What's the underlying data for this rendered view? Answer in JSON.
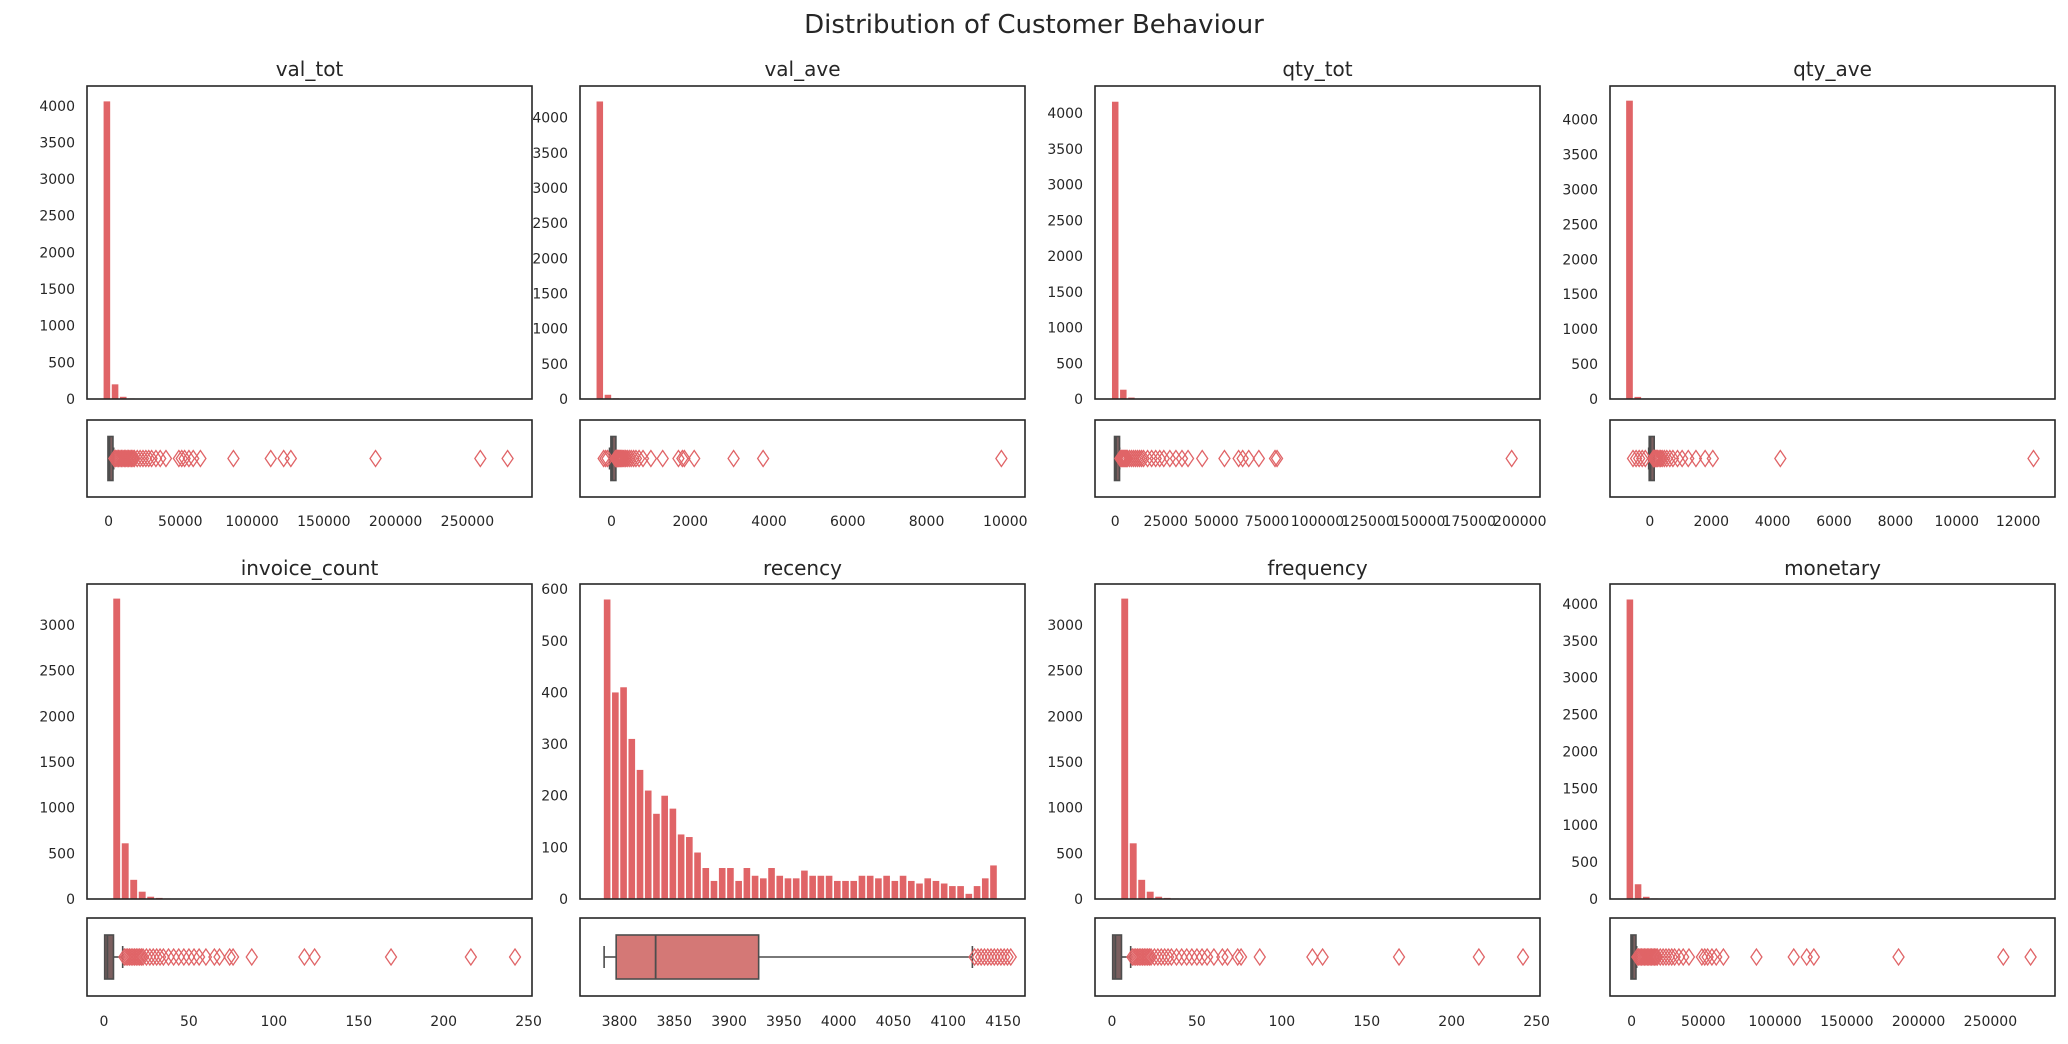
{
  "suptitle": "Distribution of Customer Behaviour",
  "colors": {
    "bar": "#e06467",
    "box_fill": "#d47876",
    "median_box_fill": "#7b5f5f",
    "flier": "#e06467",
    "line": "#4d4d4d"
  },
  "chart_data": [
    {
      "type": "histogram+boxplot",
      "title": "val_tot",
      "hist": {
        "bin_start": -4000,
        "bin_width": 5700,
        "counts": [
          4060,
          200,
          30,
          8,
          4,
          2,
          1
        ],
        "ylim": [
          0,
          4270
        ],
        "yticks": [
          0,
          500,
          1000,
          1500,
          2000,
          2500,
          3000,
          3500,
          4000
        ]
      },
      "xlim": [
        -15000,
        295000
      ],
      "xticks": [
        0,
        50000,
        100000,
        150000,
        200000,
        250000
      ],
      "xticklabels": [
        "0",
        "50000",
        "100000",
        "150000",
        "200000",
        "250000"
      ],
      "box": {
        "q1": 300,
        "median": 650,
        "q3": 1600,
        "whisker_low": 0,
        "whisker_high": 3600
      },
      "fliers": [
        4000,
        5000,
        6000,
        7000,
        8000,
        9000,
        10000,
        11000,
        12000,
        13000,
        14000,
        15000,
        16000,
        17000,
        18000,
        20000,
        22000,
        24000,
        26000,
        28000,
        30000,
        33000,
        36000,
        40000,
        49000,
        51000,
        53000,
        56000,
        59000,
        64000,
        87000,
        113000,
        122000,
        127000,
        186000,
        259000,
        278000
      ]
    },
    {
      "type": "histogram+boxplot",
      "title": "val_ave",
      "hist": {
        "bin_start": -400,
        "bin_width": 206,
        "counts": [
          4230,
          60,
          10,
          3,
          2,
          1
        ],
        "ylim": [
          0,
          4450
        ],
        "yticks": [
          0,
          500,
          1000,
          1500,
          2000,
          2500,
          3000,
          3500,
          4000
        ]
      },
      "xlim": [
        -800,
        10500
      ],
      "xticks": [
        0,
        2000,
        4000,
        6000,
        8000,
        10000
      ],
      "xticklabels": [
        "0",
        "2000",
        "4000",
        "6000",
        "8000",
        "10000"
      ],
      "box": {
        "q1": 10,
        "median": 18,
        "q3": 30,
        "whisker_low": -50,
        "whisker_high": 80
      },
      "fliers": [
        -200,
        -150,
        -100,
        100,
        120,
        140,
        160,
        180,
        200,
        230,
        260,
        290,
        320,
        360,
        400,
        450,
        500,
        560,
        620,
        700,
        800,
        1000,
        1300,
        1700,
        1800,
        1850,
        2100,
        3100,
        3850,
        9900
      ]
    },
    {
      "type": "histogram+boxplot",
      "title": "qty_tot",
      "hist": {
        "bin_start": -2000,
        "bin_width": 4000,
        "counts": [
          4160,
          130,
          20,
          6,
          3,
          2,
          1
        ],
        "ylim": [
          0,
          4380
        ],
        "yticks": [
          0,
          500,
          1000,
          1500,
          2000,
          2500,
          3000,
          3500,
          4000
        ]
      },
      "xlim": [
        -10000,
        210000
      ],
      "xticks": [
        0,
        25000,
        50000,
        75000,
        100000,
        125000,
        150000,
        175000,
        200000
      ],
      "xticklabels": [
        "0",
        "25000",
        "50000",
        "75000",
        "100000",
        "125000",
        "150000",
        "175000",
        "200000"
      ],
      "box": {
        "q1": 150,
        "median": 380,
        "q3": 1000,
        "whisker_low": 0,
        "whisker_high": 2200
      },
      "fliers": [
        2500,
        3000,
        3500,
        4000,
        4500,
        5000,
        5500,
        6000,
        7000,
        8000,
        9000,
        10000,
        11000,
        12000,
        13000,
        14000,
        16000,
        18000,
        20000,
        22000,
        24000,
        27000,
        30000,
        33000,
        36000,
        43000,
        54000,
        61000,
        63000,
        66000,
        71000,
        79000,
        80000,
        196000
      ]
    },
    {
      "type": "histogram+boxplot",
      "title": "qty_ave",
      "hist": {
        "bin_start": -800,
        "bin_width": 270,
        "counts": [
          4270,
          30,
          8,
          3,
          2,
          1
        ],
        "ylim": [
          0,
          4480
        ],
        "yticks": [
          0,
          500,
          1000,
          1500,
          2000,
          2500,
          3000,
          3500,
          4000
        ]
      },
      "xlim": [
        -1300,
        13200
      ],
      "xticks": [
        0,
        2000,
        4000,
        6000,
        8000,
        10000,
        12000
      ],
      "xticklabels": [
        "0",
        "2000",
        "4000",
        "6000",
        "8000",
        "10000",
        "12000"
      ],
      "box": {
        "q1": 10,
        "median": 20,
        "q3": 40,
        "whisker_low": -40,
        "whisker_high": 90
      },
      "fliers": [
        -550,
        -450,
        -350,
        -250,
        -150,
        110,
        130,
        150,
        180,
        210,
        250,
        300,
        350,
        400,
        470,
        550,
        650,
        750,
        900,
        1050,
        1250,
        1500,
        1800,
        2050,
        4250,
        12500
      ]
    },
    {
      "type": "histogram+boxplot",
      "title": "invoice_count",
      "hist": {
        "bin_start": 0,
        "bin_width": 5,
        "counts": [
          0,
          3290,
          610,
          210,
          80,
          25,
          12,
          6,
          4,
          3,
          2,
          2,
          1
        ],
        "ylim": [
          0,
          3450
        ],
        "yticks": [
          0,
          500,
          1000,
          1500,
          2000,
          2500,
          3000
        ]
      },
      "xlim": [
        -10,
        252
      ],
      "xticks": [
        0,
        50,
        100,
        150,
        200,
        250
      ],
      "xticklabels": [
        "0",
        "50",
        "100",
        "150",
        "200",
        "250"
      ],
      "box": {
        "q1": 1,
        "median": 2,
        "q3": 5,
        "whisker_low": 1,
        "whisker_high": 11
      },
      "fliers": [
        12,
        13,
        14,
        15,
        16,
        17,
        18,
        19,
        20,
        21,
        22,
        23,
        25,
        27,
        29,
        31,
        33,
        35,
        38,
        41,
        44,
        47,
        50,
        53,
        56,
        60,
        65,
        68,
        74,
        76,
        87,
        118,
        124,
        169,
        216,
        242
      ]
    },
    {
      "type": "histogram+boxplot",
      "title": "recency",
      "hist": {
        "bin_start": 3785,
        "bin_width": 7.5,
        "counts": [
          580,
          400,
          410,
          310,
          250,
          210,
          165,
          200,
          175,
          125,
          120,
          90,
          60,
          35,
          60,
          60,
          35,
          60,
          45,
          40,
          60,
          45,
          40,
          40,
          55,
          45,
          45,
          45,
          35,
          35,
          35,
          45,
          45,
          40,
          45,
          35,
          45,
          35,
          30,
          40,
          35,
          30,
          25,
          25,
          10,
          25,
          40,
          65
        ],
        "ylim": [
          0,
          610
        ],
        "yticks": [
          0,
          100,
          200,
          300,
          400,
          500,
          600
        ]
      },
      "xlim": [
        3764,
        4170
      ],
      "xticks": [
        3800,
        3850,
        3900,
        3950,
        4000,
        4050,
        4100,
        4150
      ],
      "xticklabels": [
        "3800",
        "3850",
        "3900",
        "3950",
        "4000",
        "4050",
        "4100",
        "4150"
      ],
      "box": {
        "q1": 3797,
        "median": 3833,
        "q3": 3927,
        "whisker_low": 3786,
        "whisker_high": 4122
      },
      "fliers": [
        4124,
        4127,
        4130,
        4133,
        4136,
        4139,
        4142,
        4145,
        4148,
        4151,
        4154,
        4157
      ]
    },
    {
      "type": "histogram+boxplot",
      "title": "frequency",
      "hist": {
        "bin_start": 0,
        "bin_width": 5,
        "counts": [
          0,
          3290,
          610,
          210,
          80,
          25,
          12,
          6,
          4,
          3,
          2,
          2,
          1
        ],
        "ylim": [
          0,
          3450
        ],
        "yticks": [
          0,
          500,
          1000,
          1500,
          2000,
          2500,
          3000
        ]
      },
      "xlim": [
        -10,
        252
      ],
      "xticks": [
        0,
        50,
        100,
        150,
        200,
        250
      ],
      "xticklabels": [
        "0",
        "50",
        "100",
        "150",
        "200",
        "250"
      ],
      "box": {
        "q1": 1,
        "median": 2,
        "q3": 5,
        "whisker_low": 1,
        "whisker_high": 11
      },
      "fliers": [
        12,
        13,
        14,
        15,
        16,
        17,
        18,
        19,
        20,
        21,
        22,
        23,
        25,
        27,
        29,
        31,
        33,
        35,
        38,
        41,
        44,
        47,
        50,
        53,
        56,
        60,
        65,
        68,
        74,
        76,
        87,
        118,
        124,
        169,
        216,
        242
      ]
    },
    {
      "type": "histogram+boxplot",
      "title": "monetary",
      "hist": {
        "bin_start": -4000,
        "bin_width": 5700,
        "counts": [
          4060,
          200,
          30,
          8,
          4,
          2,
          1
        ],
        "ylim": [
          0,
          4270
        ],
        "yticks": [
          0,
          500,
          1000,
          1500,
          2000,
          2500,
          3000,
          3500,
          4000
        ]
      },
      "xlim": [
        -15000,
        295000
      ],
      "xticks": [
        0,
        50000,
        100000,
        150000,
        200000,
        250000
      ],
      "xticklabels": [
        "0",
        "50000",
        "100000",
        "150000",
        "200000",
        "250000"
      ],
      "box": {
        "q1": 300,
        "median": 650,
        "q3": 1600,
        "whisker_low": 0,
        "whisker_high": 3600
      },
      "fliers": [
        4000,
        5000,
        6000,
        7000,
        8000,
        9000,
        10000,
        11000,
        12000,
        13000,
        14000,
        15000,
        16000,
        17000,
        18000,
        20000,
        22000,
        24000,
        26000,
        28000,
        30000,
        33000,
        36000,
        40000,
        49000,
        51000,
        53000,
        56000,
        59000,
        64000,
        87000,
        113000,
        122000,
        127000,
        186000,
        259000,
        278000
      ]
    }
  ]
}
